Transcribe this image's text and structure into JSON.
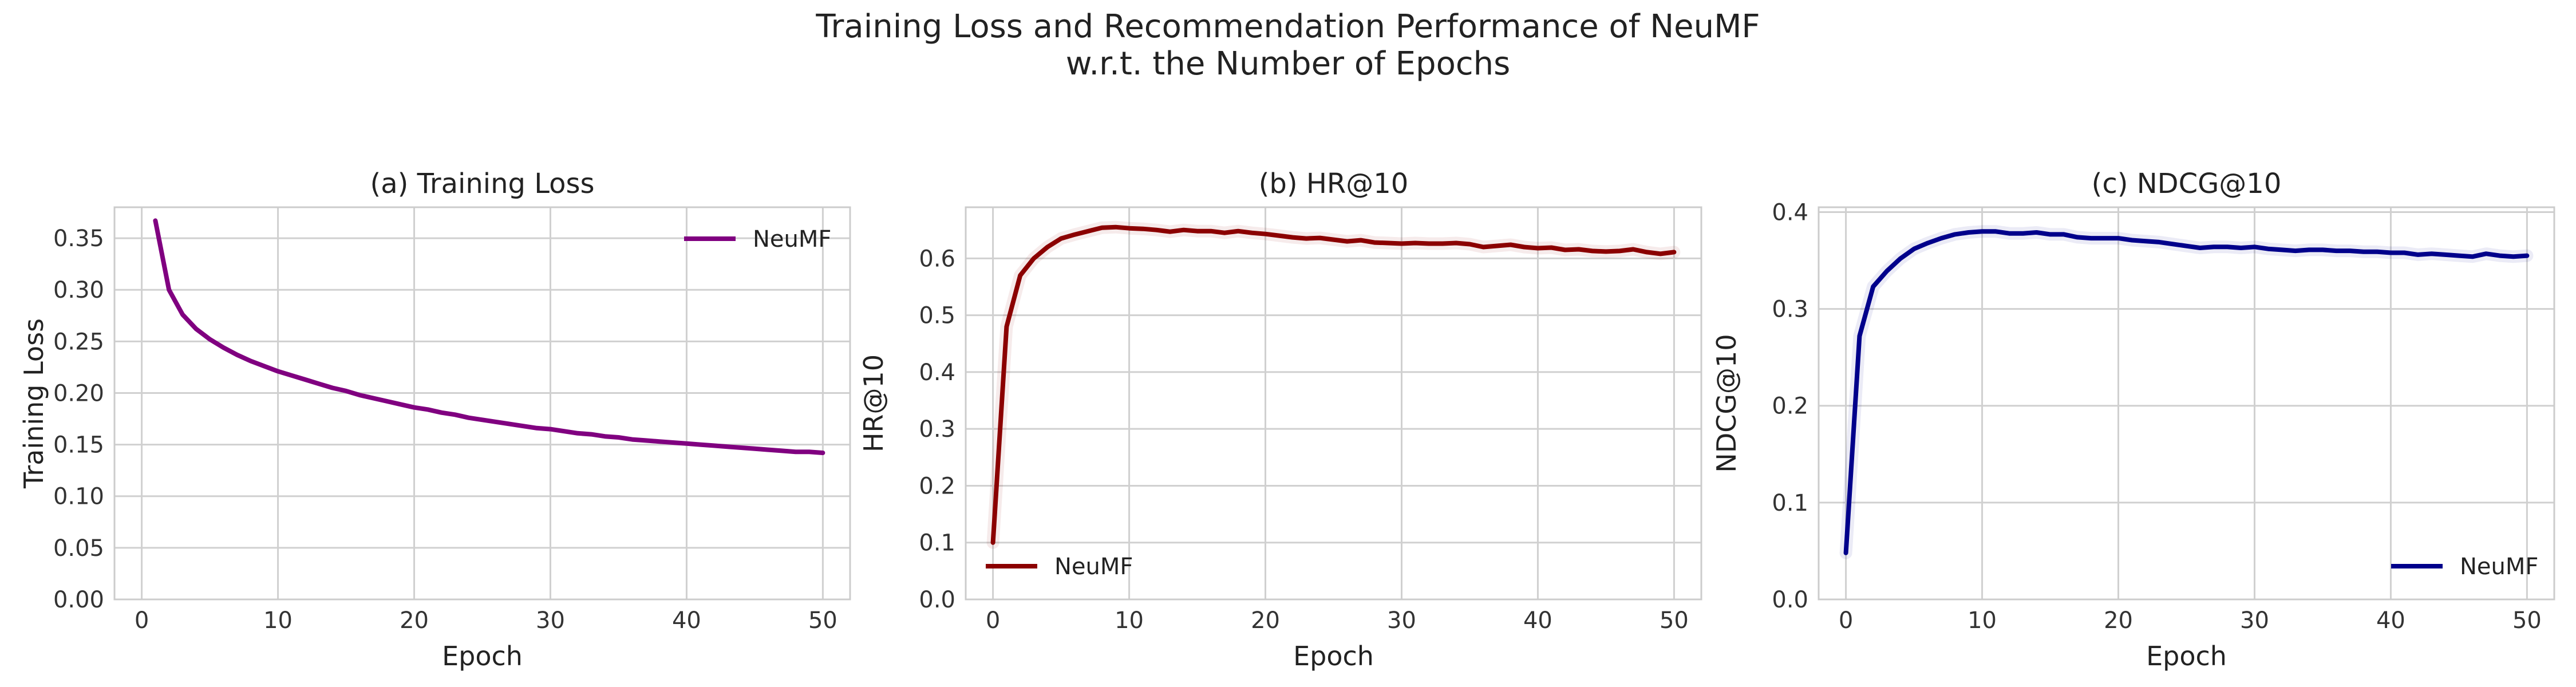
{
  "figure": {
    "title_line1": "Training Loss and Recommendation Performance of NeuMF",
    "title_line2": "w.r.t. the Number of Epochs"
  },
  "chart_data": [
    {
      "type": "line",
      "title": "(a) Training Loss",
      "xlabel": "Epoch",
      "ylabel": "Training Loss",
      "xlim": [
        -2,
        52
      ],
      "ylim": [
        0,
        0.38
      ],
      "xticks": [
        0,
        10,
        20,
        30,
        40,
        50
      ],
      "yticks": [
        0,
        0.05,
        0.1,
        0.15,
        0.2,
        0.25,
        0.3,
        0.35
      ],
      "ytick_decimals": 2,
      "grid": true,
      "legend": "top-right",
      "series": [
        {
          "name": "NeuMF",
          "color": "#800080",
          "x": [
            1,
            2,
            3,
            4,
            5,
            6,
            7,
            8,
            9,
            10,
            11,
            12,
            13,
            14,
            15,
            16,
            17,
            18,
            19,
            20,
            21,
            22,
            23,
            24,
            25,
            26,
            27,
            28,
            29,
            30,
            31,
            32,
            33,
            34,
            35,
            36,
            37,
            38,
            39,
            40,
            41,
            42,
            43,
            44,
            45,
            46,
            47,
            48,
            49,
            50
          ],
          "y": [
            0.367,
            0.3,
            0.276,
            0.262,
            0.252,
            0.244,
            0.237,
            0.231,
            0.226,
            0.221,
            0.217,
            0.213,
            0.209,
            0.205,
            0.202,
            0.198,
            0.195,
            0.192,
            0.189,
            0.186,
            0.184,
            0.181,
            0.179,
            0.176,
            0.174,
            0.172,
            0.17,
            0.168,
            0.166,
            0.165,
            0.163,
            0.161,
            0.16,
            0.158,
            0.157,
            0.155,
            0.154,
            0.153,
            0.152,
            0.151,
            0.15,
            0.149,
            0.148,
            0.147,
            0.146,
            0.145,
            0.144,
            0.143,
            0.143,
            0.142
          ]
        }
      ]
    },
    {
      "type": "line",
      "title": "(b) HR@10",
      "xlabel": "Epoch",
      "ylabel": "HR@10",
      "xlim": [
        -2,
        52
      ],
      "ylim": [
        0,
        0.69
      ],
      "xticks": [
        0,
        10,
        20,
        30,
        40,
        50
      ],
      "yticks": [
        0,
        0.1,
        0.2,
        0.3,
        0.4,
        0.5,
        0.6
      ],
      "ytick_decimals": 1,
      "grid": true,
      "legend": "bottom-left",
      "series": [
        {
          "name": "NeuMF",
          "color": "#8b0000",
          "x": [
            0,
            1,
            2,
            3,
            4,
            5,
            6,
            7,
            8,
            9,
            10,
            11,
            12,
            13,
            14,
            15,
            16,
            17,
            18,
            19,
            20,
            21,
            22,
            23,
            24,
            25,
            26,
            27,
            28,
            29,
            30,
            31,
            32,
            33,
            34,
            35,
            36,
            37,
            38,
            39,
            40,
            41,
            42,
            43,
            44,
            45,
            46,
            47,
            48,
            49,
            50
          ],
          "y": [
            0.1,
            0.48,
            0.57,
            0.6,
            0.62,
            0.635,
            0.642,
            0.648,
            0.654,
            0.655,
            0.653,
            0.652,
            0.65,
            0.647,
            0.65,
            0.648,
            0.648,
            0.645,
            0.648,
            0.645,
            0.643,
            0.64,
            0.637,
            0.635,
            0.636,
            0.633,
            0.63,
            0.632,
            0.628,
            0.627,
            0.626,
            0.627,
            0.626,
            0.626,
            0.627,
            0.625,
            0.62,
            0.622,
            0.624,
            0.62,
            0.618,
            0.619,
            0.615,
            0.616,
            0.613,
            0.612,
            0.613,
            0.616,
            0.611,
            0.608,
            0.611
          ]
        }
      ]
    },
    {
      "type": "line",
      "title": "(c) NDCG@10",
      "xlabel": "Epoch",
      "ylabel": "NDCG@10",
      "xlim": [
        -2,
        52
      ],
      "ylim": [
        0,
        0.405
      ],
      "xticks": [
        0,
        10,
        20,
        30,
        40,
        50
      ],
      "yticks": [
        0,
        0.1,
        0.2,
        0.3,
        0.4
      ],
      "ytick_decimals": 1,
      "grid": true,
      "legend": "bottom-right",
      "series": [
        {
          "name": "NeuMF",
          "color": "#00008b",
          "x": [
            0,
            1,
            2,
            3,
            4,
            5,
            6,
            7,
            8,
            9,
            10,
            11,
            12,
            13,
            14,
            15,
            16,
            17,
            18,
            19,
            20,
            21,
            22,
            23,
            24,
            25,
            26,
            27,
            28,
            29,
            30,
            31,
            32,
            33,
            34,
            35,
            36,
            37,
            38,
            39,
            40,
            41,
            42,
            43,
            44,
            45,
            46,
            47,
            48,
            49,
            50
          ],
          "y": [
            0.048,
            0.272,
            0.323,
            0.339,
            0.352,
            0.362,
            0.368,
            0.373,
            0.377,
            0.379,
            0.38,
            0.38,
            0.378,
            0.378,
            0.379,
            0.377,
            0.377,
            0.374,
            0.373,
            0.373,
            0.373,
            0.371,
            0.37,
            0.369,
            0.367,
            0.365,
            0.363,
            0.364,
            0.364,
            0.363,
            0.364,
            0.362,
            0.361,
            0.36,
            0.361,
            0.361,
            0.36,
            0.36,
            0.359,
            0.359,
            0.358,
            0.358,
            0.356,
            0.357,
            0.356,
            0.355,
            0.354,
            0.357,
            0.355,
            0.354,
            0.355
          ]
        }
      ]
    }
  ]
}
